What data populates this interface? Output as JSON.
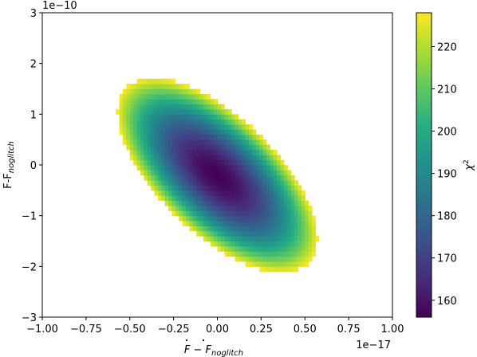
{
  "chart_data": {
    "type": "heatmap",
    "title": "",
    "x_multiplier_label": "1e−17",
    "y_multiplier_label": "1e−10",
    "xlim": [
      -1.0,
      1.0
    ],
    "ylim": [
      -3,
      3
    ],
    "x_ticks": [
      -1.0,
      -0.75,
      -0.5,
      -0.25,
      0.0,
      0.25,
      0.5,
      0.75,
      1.0
    ],
    "x_tick_labels": [
      "−1.00",
      "−0.75",
      "−0.50",
      "−0.25",
      "0.00",
      "0.25",
      "0.50",
      "0.75",
      "1.00"
    ],
    "y_ticks": [
      -3,
      -2,
      -1,
      0,
      1,
      2,
      3
    ],
    "y_tick_labels": [
      "−3",
      "−2",
      "−1",
      "0",
      "1",
      "2",
      "3"
    ],
    "xlabel_parts": [
      "F",
      " − ",
      "F",
      "noglitch"
    ],
    "ylabel_parts": [
      "F-F",
      "noglitch"
    ],
    "colorbar": {
      "label_base": "χ",
      "label_sup": "2",
      "range": [
        156,
        228
      ],
      "ticks": [
        160,
        170,
        180,
        190,
        200,
        210,
        220
      ],
      "tick_labels": [
        "160",
        "170",
        "180",
        "190",
        "200",
        "210",
        "220"
      ],
      "colormap": "viridis"
    },
    "field": {
      "minimum": 156,
      "center": [
        0.0,
        -0.2
      ],
      "major_axis_slope": -4.9,
      "major_semi_axis_x": 0.39,
      "minor_semi_axis_x": 0.085,
      "cutoff": 228,
      "cell_dx": 0.02,
      "cell_dy": 0.1
    }
  }
}
